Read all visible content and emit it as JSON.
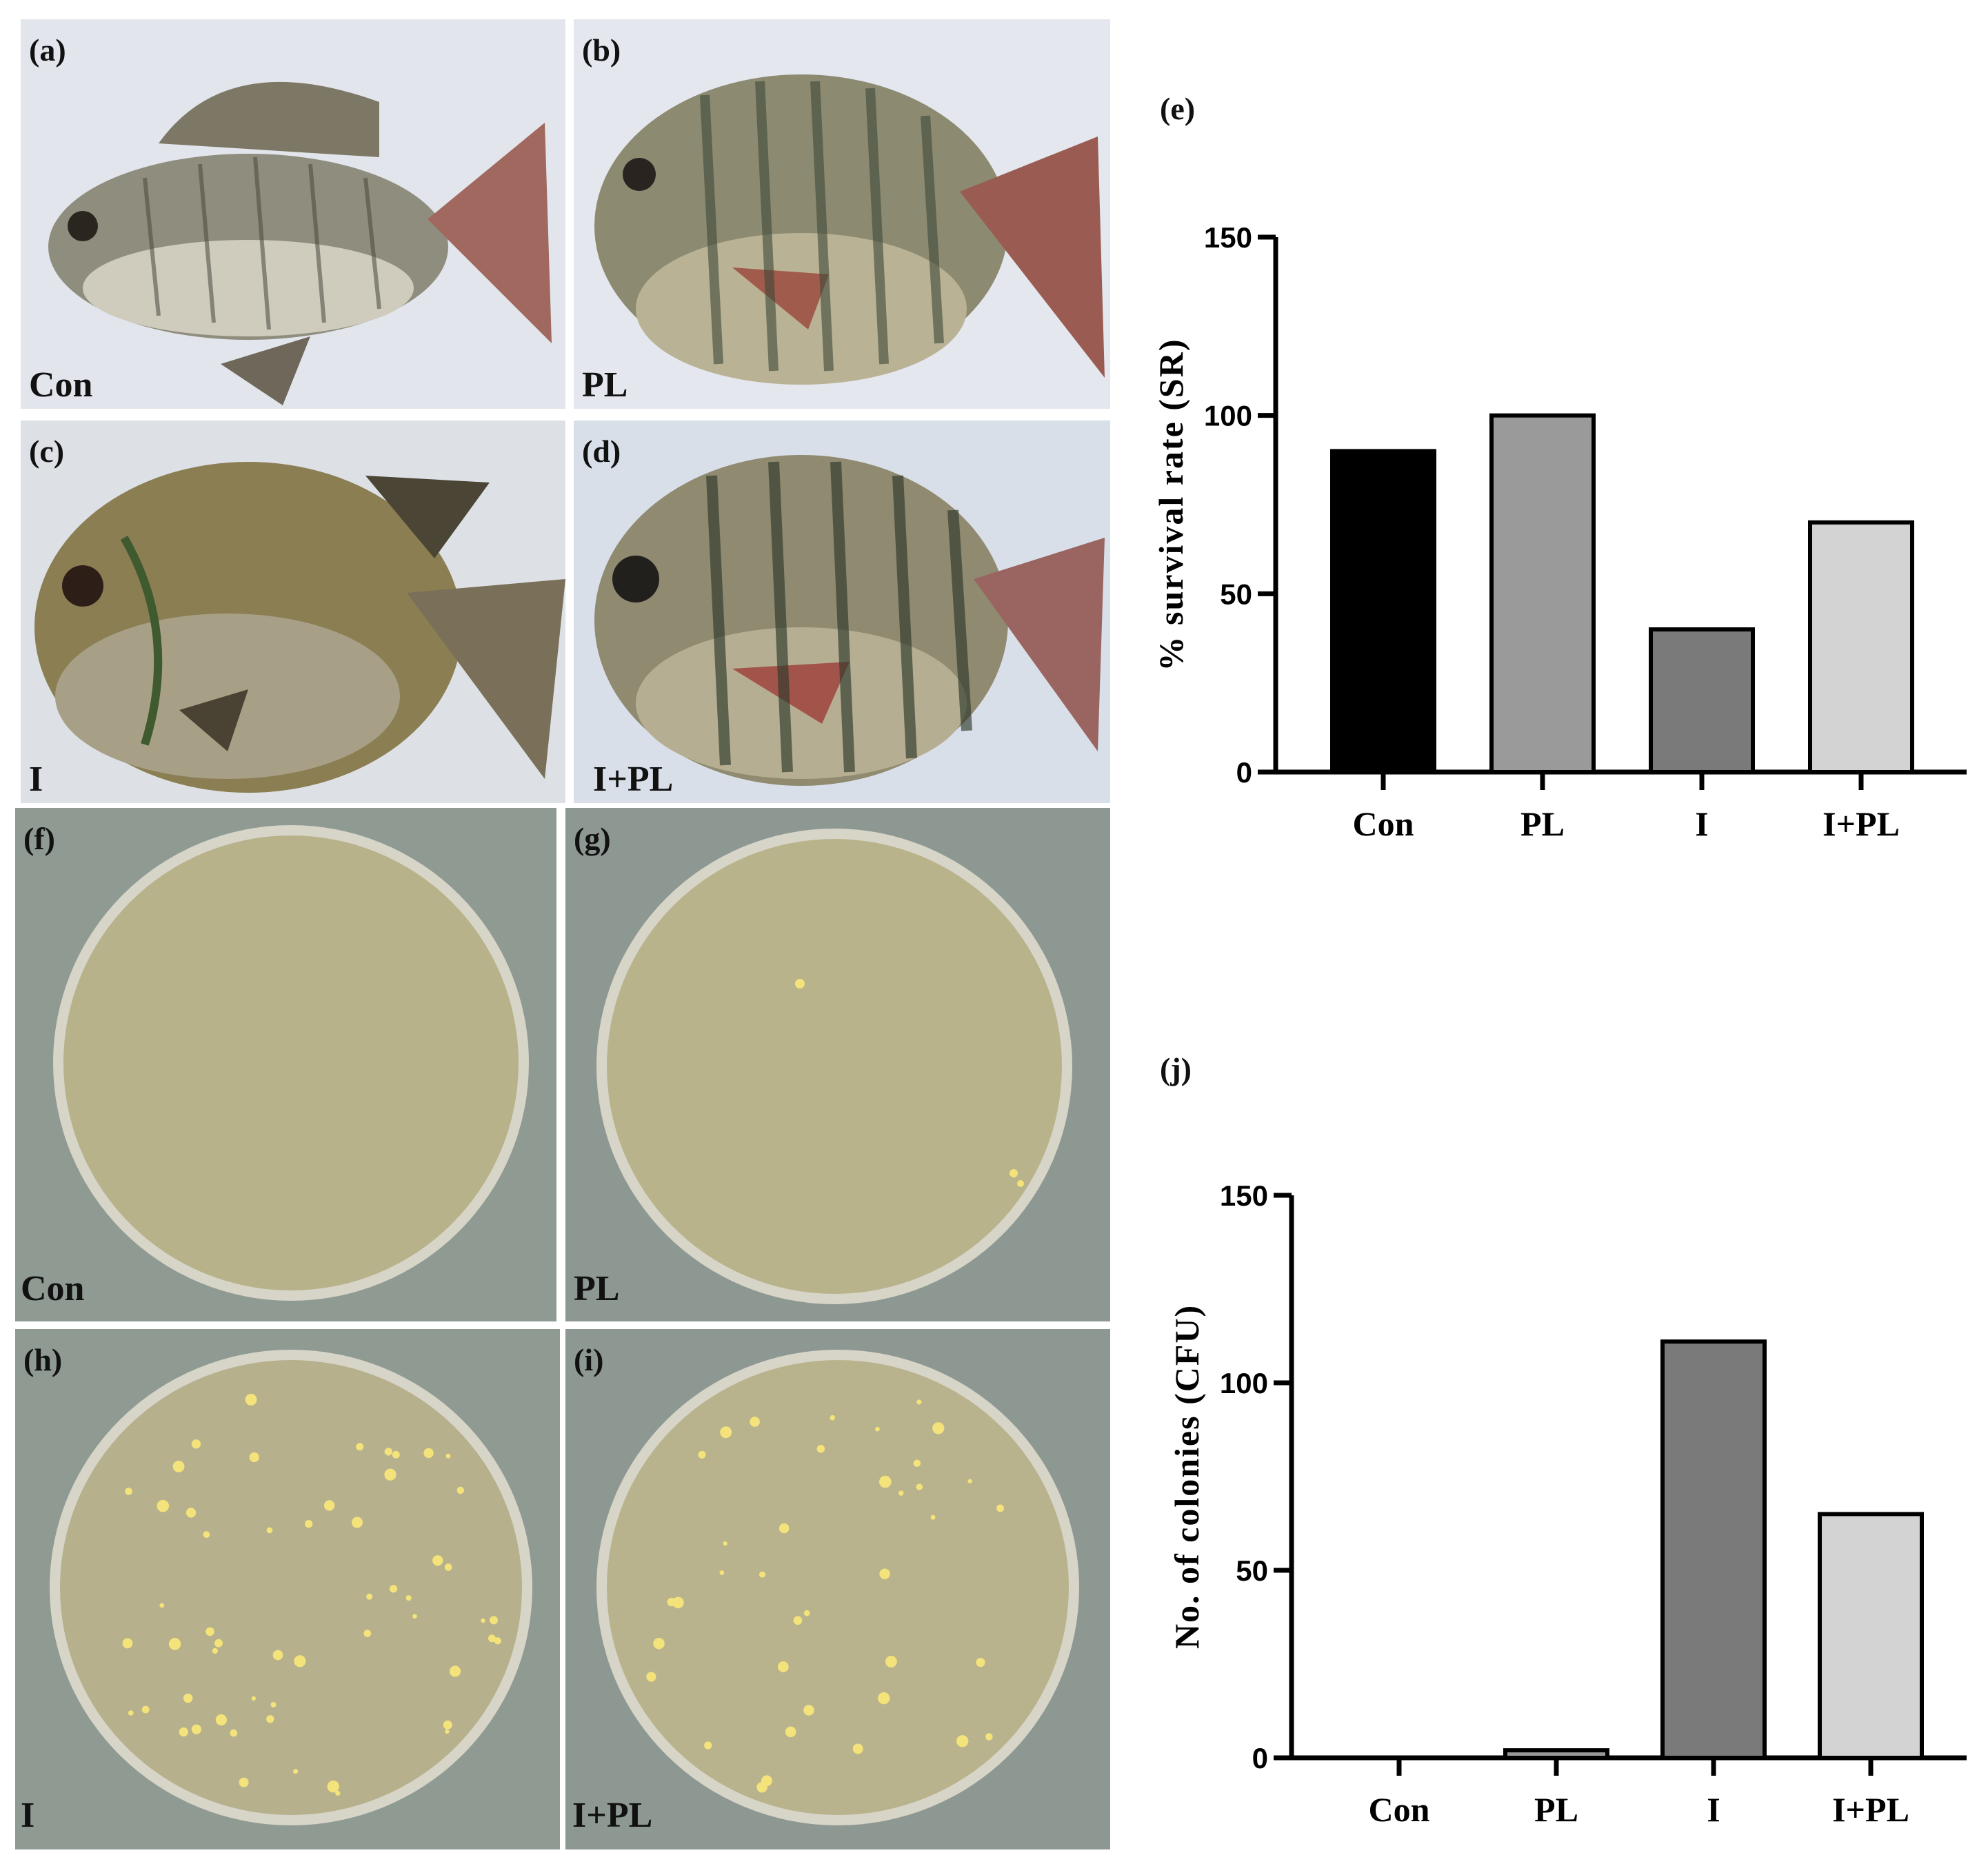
{
  "photo_panels": {
    "a": {
      "letter": "(a)",
      "group": "Con"
    },
    "b": {
      "letter": "(b)",
      "group": "PL"
    },
    "c": {
      "letter": "(c)",
      "group": "I"
    },
    "d": {
      "letter": "(d)",
      "group": "I+PL"
    },
    "f": {
      "letter": "(f)",
      "group": "Con"
    },
    "g": {
      "letter": "(g)",
      "group": "PL"
    },
    "h": {
      "letter": "(h)",
      "group": "I"
    },
    "i": {
      "letter": "(i)",
      "group": "I+PL"
    }
  },
  "colors": {
    "con": "#000000",
    "pl": "#9a9a9a",
    "i": "#7a7a7a",
    "ipl": "#d3d3d3",
    "plate_bg": "#8e9a92",
    "agar": "#b8b28b",
    "fish_bg": "#dfe4ea",
    "colony": "#f3e37a"
  },
  "chart_data": [
    {
      "type": "bar",
      "panel_letter": "(e)",
      "categories": [
        "Con",
        "PL",
        "I",
        "I+PL"
      ],
      "values": [
        90,
        100,
        40,
        70
      ],
      "ylabel": "% survival rate (SR)",
      "yticks": [
        "0",
        "50",
        "100",
        "150"
      ],
      "ylim": [
        0,
        150
      ],
      "grid": false,
      "legend": "none"
    },
    {
      "type": "bar",
      "panel_letter": "(j)",
      "categories": [
        "Con",
        "PL",
        "I",
        "I+PL"
      ],
      "values": [
        0,
        2,
        111,
        65
      ],
      "ylabel": "No. of colonies (CFU)",
      "yticks": [
        "0",
        "50",
        "100",
        "150"
      ],
      "ylim": [
        0,
        150
      ],
      "grid": false,
      "legend": "none"
    }
  ]
}
